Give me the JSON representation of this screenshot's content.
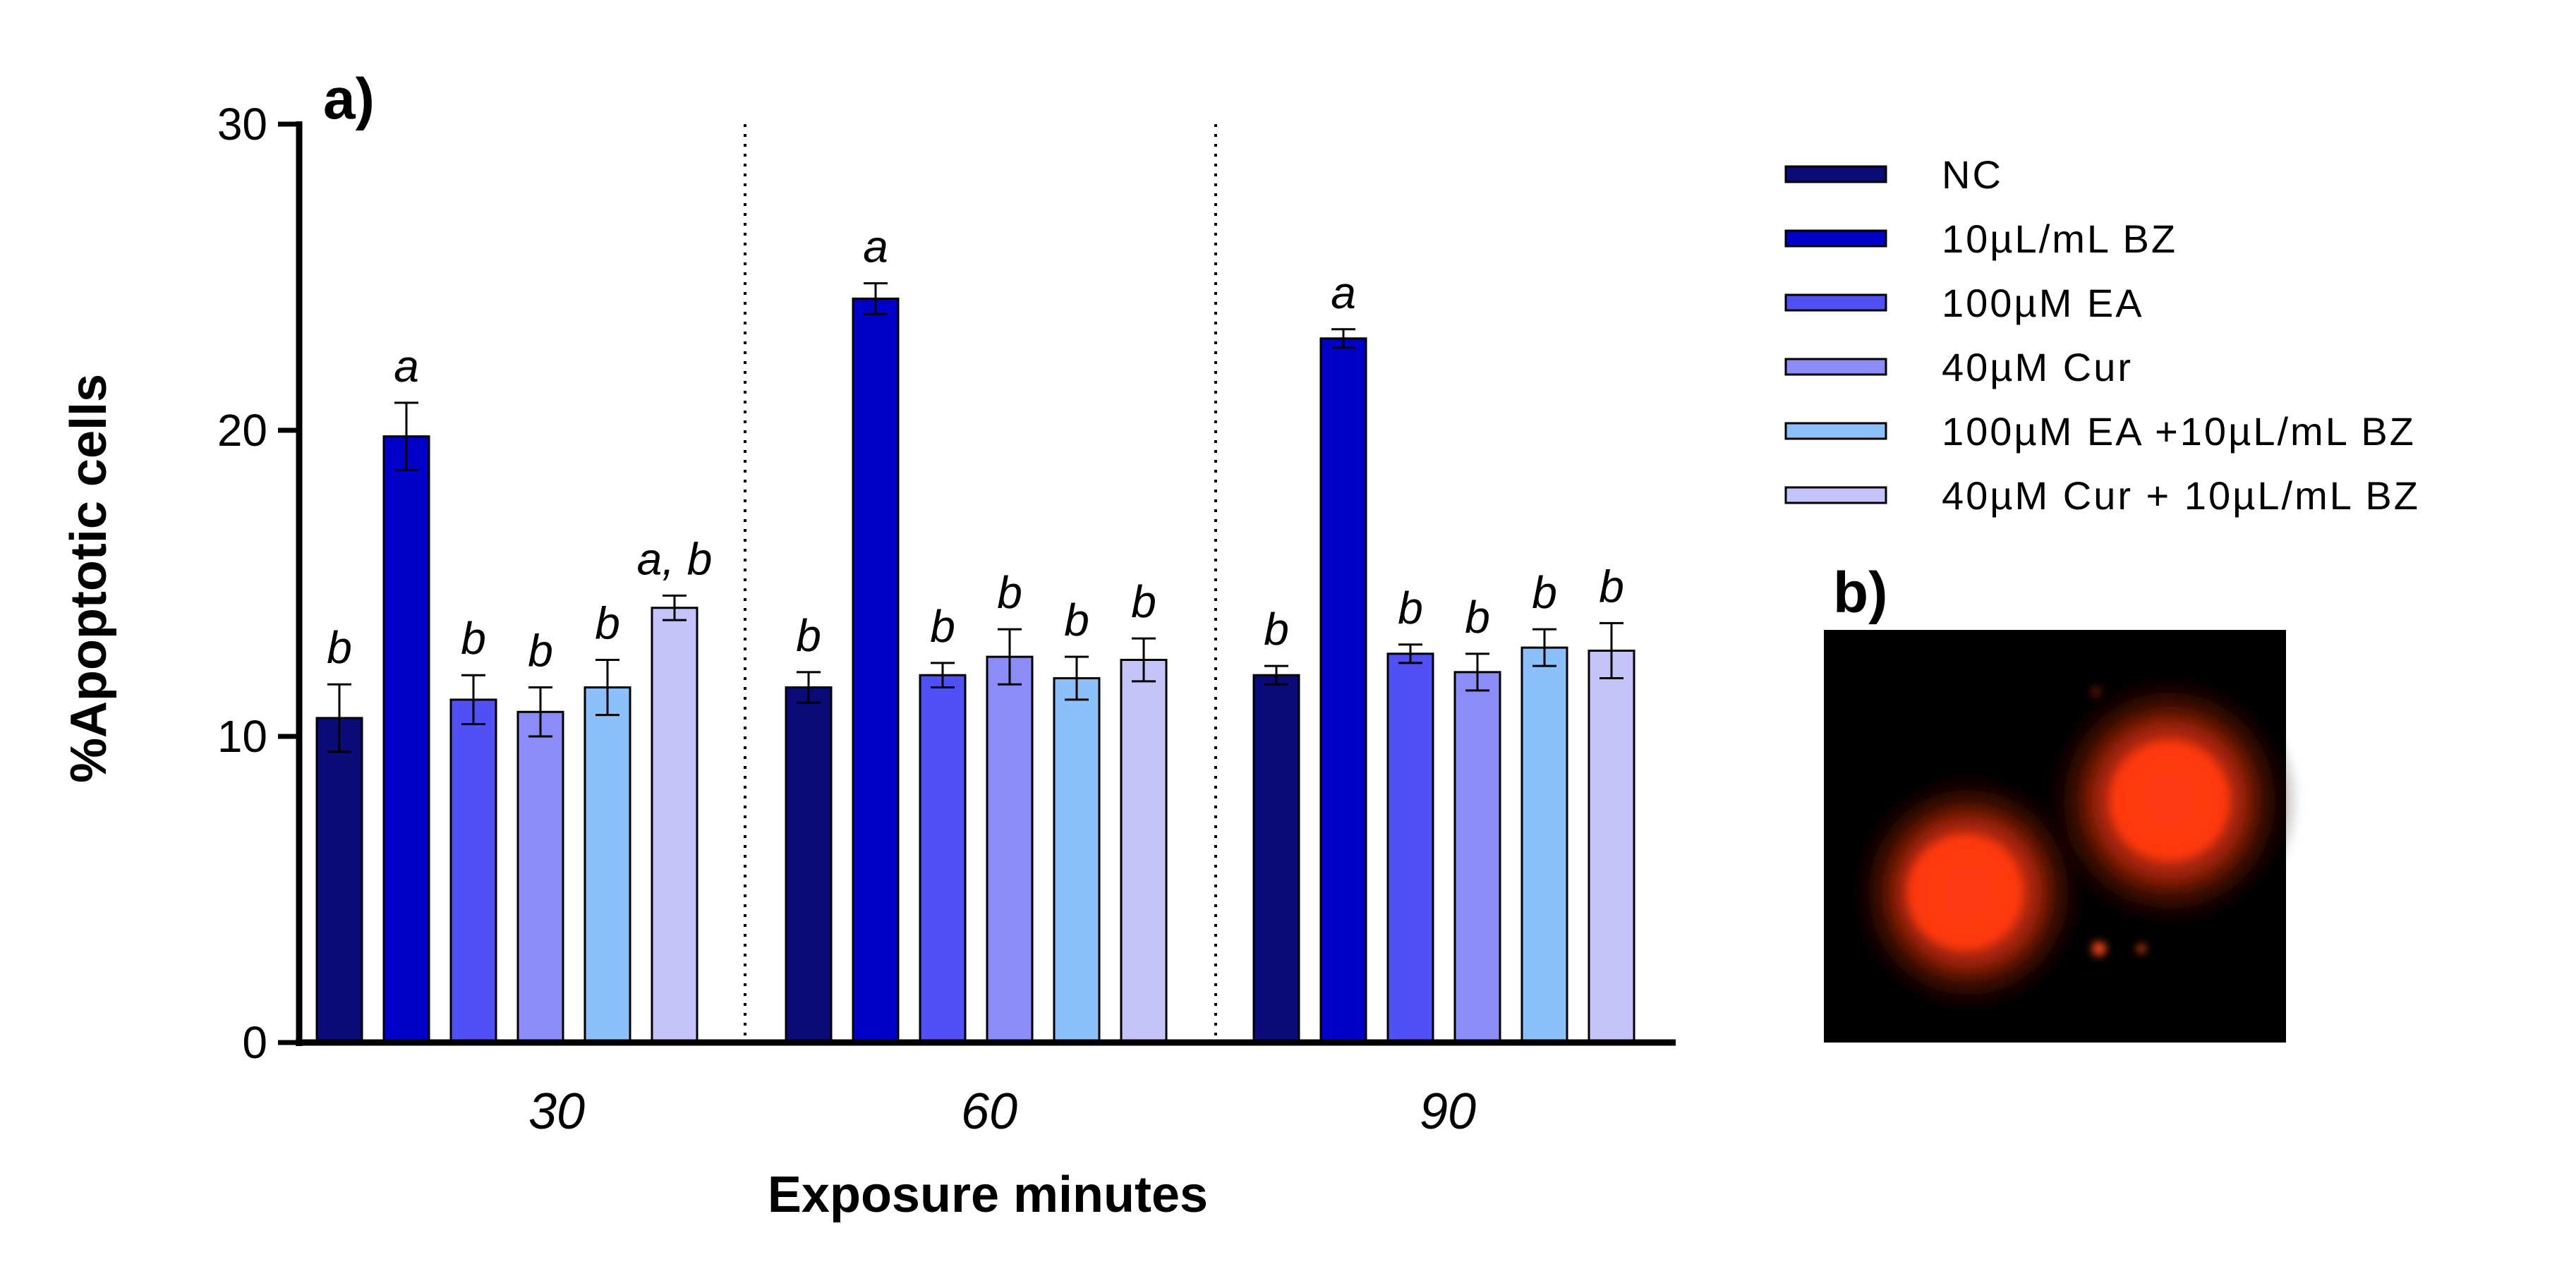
{
  "panel_a_label": "a)",
  "panel_b_label": "b)",
  "chart_data": {
    "type": "bar",
    "title": "",
    "xlabel": "Exposure minutes",
    "ylabel": "%Apoptotic cells",
    "ylim": [
      0,
      30
    ],
    "yticks": [
      0,
      10,
      20,
      30
    ],
    "categories": [
      "30",
      "60",
      "90"
    ],
    "series": [
      {
        "name": "NC",
        "color": "#0a0a78",
        "values": [
          10.6,
          11.6,
          12.0
        ],
        "errors": [
          1.1,
          0.5,
          0.3
        ],
        "labels": [
          "b",
          "b",
          "b"
        ]
      },
      {
        "name": "10µL/mL BZ",
        "color": "#0000c8",
        "values": [
          19.8,
          24.3,
          23.0
        ],
        "errors": [
          1.1,
          0.5,
          0.3
        ],
        "labels": [
          "a",
          "a",
          "a"
        ]
      },
      {
        "name": "100µM EA",
        "color": "#5050f5",
        "values": [
          11.2,
          12.0,
          12.7
        ],
        "errors": [
          0.8,
          0.4,
          0.3
        ],
        "labels": [
          "b",
          "b",
          "b"
        ]
      },
      {
        "name": "40µM Cur",
        "color": "#8c8cf8",
        "values": [
          10.8,
          12.6,
          12.1
        ],
        "errors": [
          0.8,
          0.9,
          0.6
        ],
        "labels": [
          "b",
          "b",
          "b"
        ]
      },
      {
        "name": "100µM EA +10µL/mL BZ",
        "color": "#8cc0fa",
        "values": [
          11.6,
          11.9,
          12.9
        ],
        "errors": [
          0.9,
          0.7,
          0.6
        ],
        "labels": [
          "b",
          "b",
          "b"
        ]
      },
      {
        "name": "40µM Cur + 10µL/mL BZ",
        "color": "#c4c4fa",
        "values": [
          14.2,
          12.5,
          12.8
        ],
        "errors": [
          0.4,
          0.7,
          0.9
        ],
        "labels": [
          "a, b",
          "b",
          "b"
        ]
      }
    ],
    "legend_position": "right"
  },
  "micrograph": {
    "background": "#000000",
    "glow_color": "#ff3c14",
    "description_icon": "fluorescence-micrograph"
  }
}
